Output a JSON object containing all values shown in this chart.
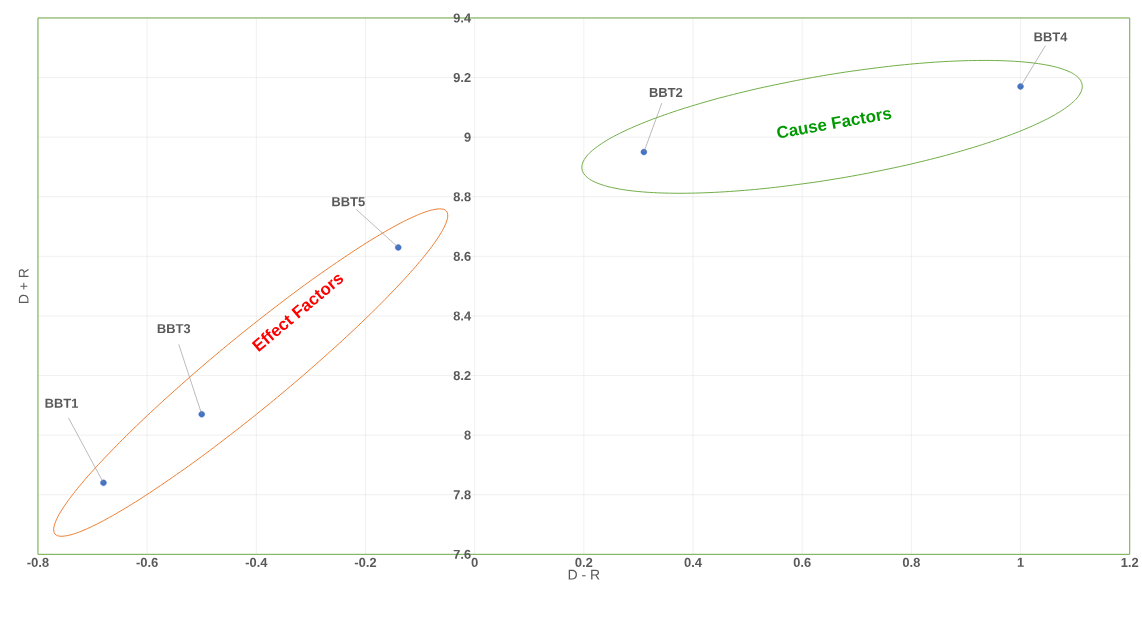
{
  "chart_data": {
    "type": "scatter",
    "xlabel": "D - R",
    "ylabel": "D + R",
    "x": [
      -0.68,
      0.31,
      -0.5,
      1.0,
      -0.14
    ],
    "values": [
      7.84,
      8.95,
      8.07,
      9.17,
      8.63
    ],
    "color": "#4472c4",
    "marker": "circle",
    "xlim": [
      -0.8,
      1.2
    ],
    "xticks": [
      -0.8,
      -0.6,
      -0.4,
      -0.2,
      0,
      0.2,
      0.4,
      0.6,
      0.8,
      1,
      1.2
    ],
    "ylim": [
      7.6,
      9.4
    ],
    "yticks": [
      7.6,
      7.8,
      8,
      8.2,
      8.4,
      8.6,
      8.8,
      9,
      9.2,
      9.4
    ],
    "grid": true,
    "annotations": [
      {
        "text": "BBT1",
        "x": -0.68,
        "y": 7.84
      },
      {
        "text": "BBT2",
        "x": 0.31,
        "y": 8.95
      },
      {
        "text": "BBT3",
        "x": -0.5,
        "y": 8.07
      },
      {
        "text": "BBT4",
        "x": 1.0,
        "y": 9.17
      },
      {
        "text": "BBT5",
        "x": -0.14,
        "y": 8.63
      },
      "Effect Factors",
      "Cause Factors"
    ]
  }
}
